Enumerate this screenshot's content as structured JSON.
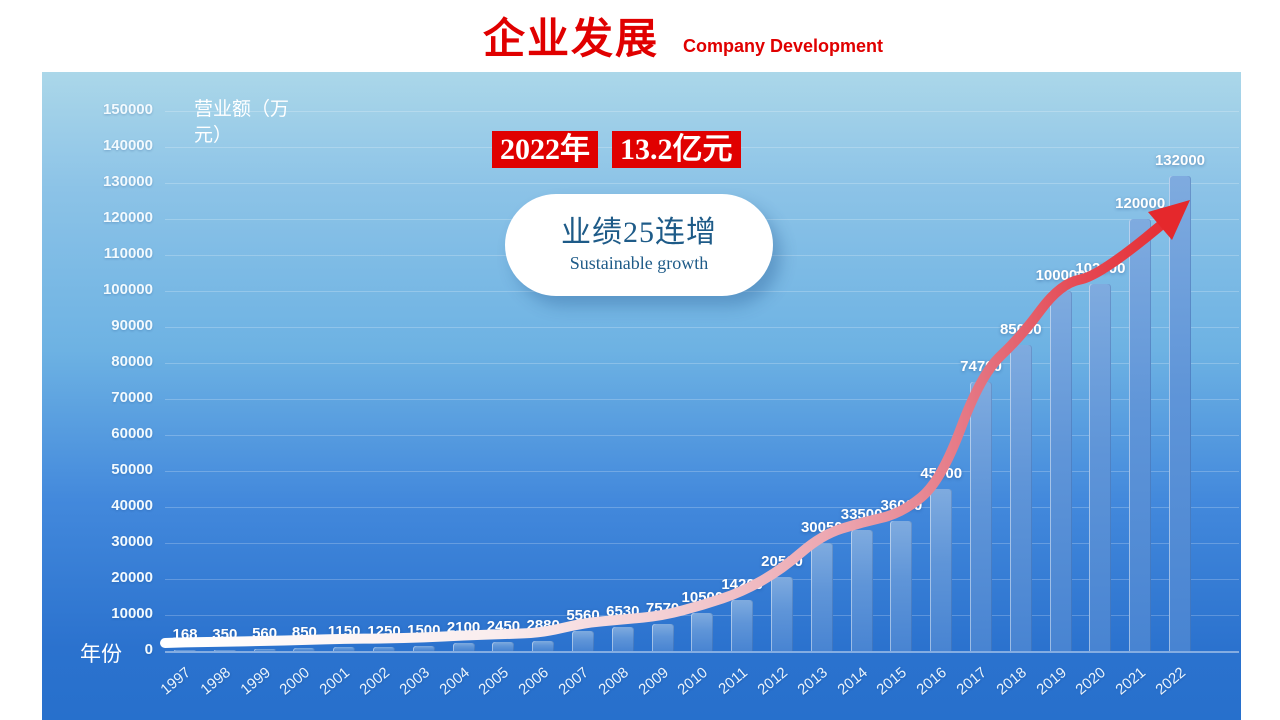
{
  "header": {
    "title": "企业发展",
    "subtitle": "Company Development"
  },
  "callouts": {
    "year_badge": "2022年",
    "value_badge": "13.2亿元",
    "bubble_line1": "业绩25连增",
    "bubble_line2": "Sustainable growth"
  },
  "chart_data": {
    "type": "bar",
    "title": "企业发展 Company Development",
    "xlabel": "年份",
    "ylabel": "营业额（万元）",
    "ylabel_lines": [
      "营业额（万",
      "元）"
    ],
    "categories": [
      "1997",
      "1998",
      "1999",
      "2000",
      "2001",
      "2002",
      "2003",
      "2004",
      "2005",
      "2006",
      "2007",
      "2008",
      "2009",
      "2010",
      "2011",
      "2012",
      "2013",
      "2014",
      "2015",
      "2016",
      "2017",
      "2018",
      "2019",
      "2020",
      "2021",
      "2022"
    ],
    "values": [
      168,
      350,
      560,
      850,
      1150,
      1250,
      1500,
      2100,
      2450,
      2880,
      5560,
      6530,
      7570,
      10500,
      14200,
      20500,
      30050,
      33500,
      36000,
      45000,
      74700,
      85000,
      100000,
      102000,
      120000,
      132000
    ],
    "ylim": [
      0,
      150000
    ],
    "ytick_step": 10000,
    "yticks": [
      0,
      10000,
      20000,
      30000,
      40000,
      50000,
      60000,
      70000,
      80000,
      90000,
      100000,
      110000,
      120000,
      130000,
      140000,
      150000
    ],
    "grid": true,
    "legend": "none",
    "data_labels": true,
    "overlay_line": {
      "shape": "smoothed trend line over bars ending in arrowhead",
      "gradient_start": "#FFFFFF",
      "gradient_end": "#E5282C",
      "arrow": true
    },
    "colors": {
      "title_red": "#E00000",
      "badge_background": "#E00000",
      "badge_text": "#FFFFFF",
      "bubble_text": "#1E5B88",
      "bar_fill": "#5F95D8",
      "plot_bg_top": "#ABD7E9",
      "plot_bg_bottom": "#2770CC",
      "axis_text": "#FFFFFF"
    }
  }
}
